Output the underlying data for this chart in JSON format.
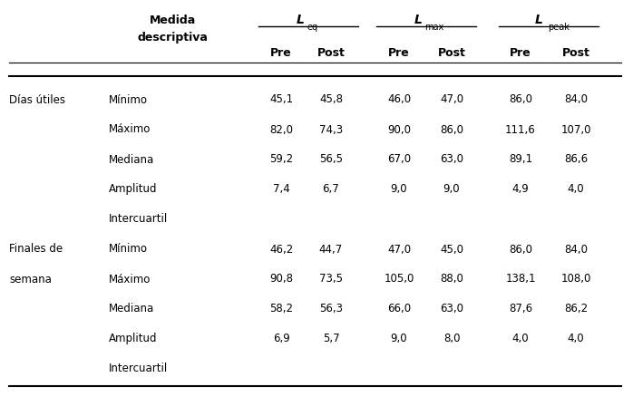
{
  "bg_color": "#ffffff",
  "font_size": 8.5,
  "header_font_size": 9.0,
  "group1_label_line1": "Días útiles",
  "group2_label_line1": "Finales de",
  "group2_label_line2": "semana",
  "medida_line1": "Medida",
  "medida_line2": "descriptiva",
  "leq_label": "L",
  "leq_sub": "eq",
  "lmax_label": "L",
  "lmax_sub": "max",
  "lpeak_label": "L",
  "lpeak_sub": "peak",
  "pre_label": "Pre",
  "post_label": "Post",
  "measures": [
    "Mínimo",
    "Máximo",
    "Mediana",
    "Amplitud",
    "Intercuartil"
  ],
  "group1_data": [
    [
      "45,1",
      "45,8",
      "46,0",
      "47,0",
      "86,0",
      "84,0"
    ],
    [
      "82,0",
      "74,3",
      "90,0",
      "86,0",
      "111,6",
      "107,0"
    ],
    [
      "59,2",
      "56,5",
      "67,0",
      "63,0",
      "89,1",
      "86,6"
    ],
    [
      "7,4",
      "6,7",
      "9,0",
      "9,0",
      "4,9",
      "4,0"
    ]
  ],
  "group2_data": [
    [
      "46,2",
      "44,7",
      "47,0",
      "45,0",
      "86,0",
      "84,0"
    ],
    [
      "90,8",
      "73,5",
      "105,0",
      "88,0",
      "138,1",
      "108,0"
    ],
    [
      "58,2",
      "56,3",
      "66,0",
      "63,0",
      "87,6",
      "86,2"
    ],
    [
      "6,9",
      "5,7",
      "9,0",
      "8,0",
      "4,0",
      "4,0"
    ]
  ]
}
